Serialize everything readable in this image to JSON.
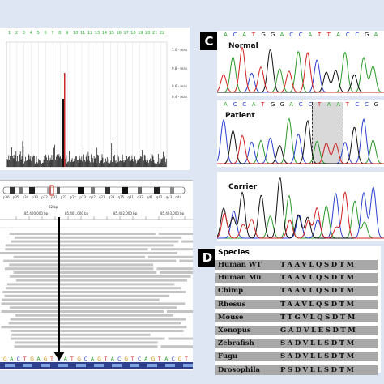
{
  "panels": {
    "c_label": "C",
    "d_label": "D"
  },
  "manhattan": {
    "chromosome_ticks": [
      "1",
      "2",
      "3",
      "4",
      "5",
      "6",
      "7",
      "8",
      "9",
      "10",
      "11",
      "12",
      "13",
      "14",
      "15",
      "16",
      "17",
      "18",
      "19",
      "20",
      "21",
      "22"
    ],
    "y_labels": [
      "1.0 - max",
      "0.8 - max",
      "0.6 - max",
      "0.4 - max"
    ]
  },
  "igv": {
    "cytobands": [
      "p36",
      "p35",
      "p34",
      "p33",
      "p32",
      "p31",
      "p22",
      "p21",
      "p13",
      "q12",
      "q21",
      "q23",
      "q25",
      "q31",
      "q32",
      "q41",
      "q42",
      "q43",
      "q44"
    ],
    "coordinate_labels": [
      "85,400,000 bp",
      "85,401,000 bp",
      "85,402,000 bp",
      "85,403,000 bp"
    ],
    "scale_label": "82 bp",
    "sequence": [
      "G",
      "A",
      "C",
      "T",
      "G",
      "A",
      "G",
      "T",
      "C",
      "A",
      "T",
      "G",
      "C",
      "A",
      "G",
      "T",
      "A",
      "C",
      "G",
      "T",
      "C",
      "A",
      "G",
      "T",
      "A",
      "C",
      "G",
      "T"
    ]
  },
  "chromatograms": [
    {
      "label": "Normal",
      "bases": [
        "A",
        "C",
        "A",
        "T",
        "G",
        "G",
        "A",
        "C",
        "C",
        "A",
        "T",
        "T",
        "A",
        "C",
        "C",
        "G",
        "A"
      ]
    },
    {
      "label": "Patient",
      "bases": [
        "A",
        "C",
        "C",
        "A",
        "T",
        "G",
        "G",
        "A",
        "C",
        "C",
        "T",
        "A",
        "A",
        "T",
        "C",
        "C",
        "G"
      ]
    },
    {
      "label": "Carrier",
      "bases": []
    }
  ],
  "species_table": {
    "header": "Species",
    "rows": [
      {
        "name": "Human WT",
        "seq": "TAAVLQSDTM"
      },
      {
        "name": "Human Mu",
        "seq": "TAAVLQSDTM"
      },
      {
        "name": "Chimp",
        "seq": "TAAVLQSDTM"
      },
      {
        "name": "Rhesus",
        "seq": "TAAVLQSDTM"
      },
      {
        "name": "Mouse",
        "seq": "TTGVLQSDTM"
      },
      {
        "name": "Xenopus",
        "seq": "GADVLESDTM"
      },
      {
        "name": "Zebrafish",
        "seq": "SADVLLSDTM"
      },
      {
        "name": "Fugu",
        "seq": "SADVLLSDTM"
      },
      {
        "name": "Drosophila",
        "seq": "PSDVLLSDTM"
      }
    ]
  },
  "colors": {
    "panel_bg": "#dde6f2",
    "highlight": "#cc2b2b",
    "trace_A": "#2a9a2a",
    "trace_C": "#2a3fd1",
    "trace_G": "#111111",
    "trace_T": "#d22020",
    "species_bg": "#a8a8a8"
  }
}
